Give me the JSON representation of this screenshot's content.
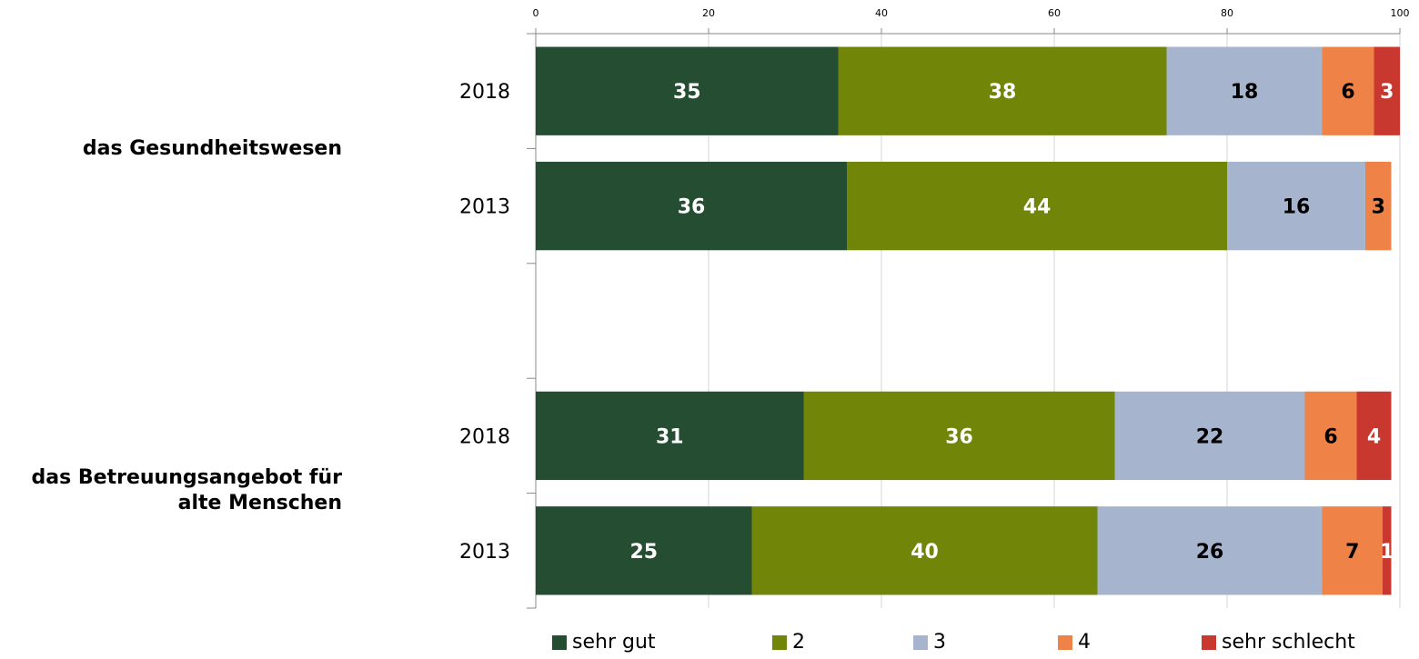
{
  "chart_data": {
    "type": "bar",
    "orientation": "horizontal",
    "stacked": true,
    "xlim": [
      0,
      100
    ],
    "x_ticks": [
      "0",
      "20",
      "40",
      "60",
      "80",
      "100"
    ],
    "grid": true,
    "legend_position": "bottom",
    "groups": [
      {
        "label": "das Gesundheitswesen",
        "rows": [
          {
            "label": "2018",
            "values": [
              35,
              38,
              18,
              6,
              3
            ]
          },
          {
            "label": "2013",
            "values": [
              36,
              44,
              16,
              3,
              0
            ]
          }
        ]
      },
      {
        "label": "das Betreuungsangebot für alte Menschen",
        "label_lines": [
          "das Betreuungsangebot für",
          "alte Menschen"
        ],
        "rows": [
          {
            "label": "2018",
            "values": [
              31,
              36,
              22,
              6,
              4
            ]
          },
          {
            "label": "2013",
            "values": [
              25,
              40,
              26,
              7,
              1
            ]
          }
        ]
      }
    ],
    "series": [
      {
        "name": "sehr gut",
        "color": "#254d32",
        "label_color": "#ffffff"
      },
      {
        "name": "2",
        "color": "#718508",
        "label_color": "#ffffff"
      },
      {
        "name": "3",
        "color": "#a6b5cd",
        "label_color": "#000000"
      },
      {
        "name": "4",
        "color": "#ef8347",
        "label_color": "#000000"
      },
      {
        "name": "sehr schlecht",
        "color": "#c8382f",
        "label_color": "#ffffff"
      }
    ]
  }
}
